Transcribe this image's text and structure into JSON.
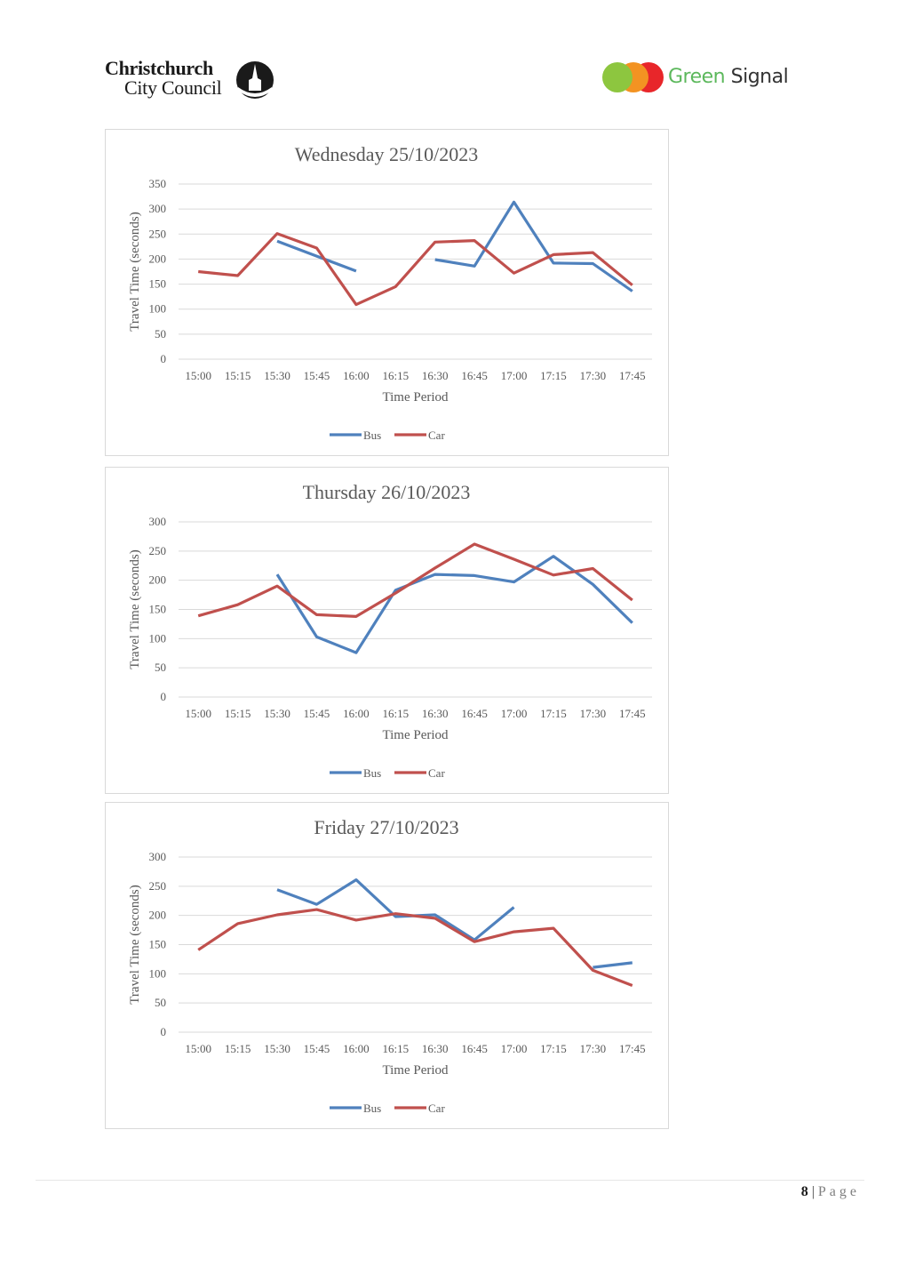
{
  "header": {
    "council_logo": {
      "line1": "Christchurch",
      "line2": "City Council"
    },
    "partner_logo": {
      "green": "Green",
      "dark": "Signal"
    }
  },
  "footer": {
    "page_number": "8",
    "separator": "|",
    "page_word": "Page"
  },
  "colors": {
    "bus": "#4f81bd",
    "car": "#c0504d",
    "grid": "#d9d9d9"
  },
  "chart_data": [
    {
      "type": "line",
      "title": "Wednesday 25/10/2023",
      "xlabel": "Time Period",
      "ylabel": "Travel Time (seconds)",
      "categories": [
        "15:00",
        "15:15",
        "15:30",
        "15:45",
        "16:00",
        "16:15",
        "16:30",
        "16:45",
        "17:00",
        "17:15",
        "17:30",
        "17:45"
      ],
      "ylim": [
        0,
        350
      ],
      "yticks": [
        0,
        50,
        100,
        150,
        200,
        250,
        300,
        350
      ],
      "grid": true,
      "legend_position": "bottom",
      "series": [
        {
          "name": "Bus",
          "values": [
            null,
            null,
            236,
            206,
            176,
            null,
            199,
            186,
            314,
            192,
            191,
            136
          ]
        },
        {
          "name": "Car",
          "values": [
            175,
            167,
            251,
            222,
            109,
            145,
            234,
            237,
            172,
            209,
            213,
            148
          ]
        }
      ]
    },
    {
      "type": "line",
      "title": "Thursday 26/10/2023",
      "xlabel": "Time Period",
      "ylabel": "Travel Time (seconds)",
      "categories": [
        "15:00",
        "15:15",
        "15:30",
        "15:45",
        "16:00",
        "16:15",
        "16:30",
        "16:45",
        "17:00",
        "17:15",
        "17:30",
        "17:45"
      ],
      "ylim": [
        0,
        300
      ],
      "yticks": [
        0,
        50,
        100,
        150,
        200,
        250,
        300
      ],
      "grid": true,
      "legend_position": "bottom",
      "series": [
        {
          "name": "Bus",
          "values": [
            null,
            null,
            210,
            103,
            76,
            183,
            210,
            208,
            197,
            241,
            193,
            127
          ]
        },
        {
          "name": "Car",
          "values": [
            139,
            158,
            190,
            141,
            138,
            178,
            221,
            262,
            236,
            209,
            220,
            166
          ]
        }
      ]
    },
    {
      "type": "line",
      "title": "Friday 27/10/2023",
      "xlabel": "Time Period",
      "ylabel": "Travel Time (seconds)",
      "categories": [
        "15:00",
        "15:15",
        "15:30",
        "15:45",
        "16:00",
        "16:15",
        "16:30",
        "16:45",
        "17:00",
        "17:15",
        "17:30",
        "17:45"
      ],
      "ylim": [
        0,
        300
      ],
      "yticks": [
        0,
        50,
        100,
        150,
        200,
        250,
        300
      ],
      "grid": true,
      "legend_position": "bottom",
      "series": [
        {
          "name": "Bus",
          "values": [
            null,
            null,
            244,
            219,
            261,
            198,
            201,
            158,
            214,
            null,
            111,
            119
          ]
        },
        {
          "name": "Car",
          "values": [
            141,
            186,
            201,
            210,
            192,
            203,
            195,
            155,
            172,
            178,
            106,
            80
          ]
        }
      ]
    }
  ]
}
